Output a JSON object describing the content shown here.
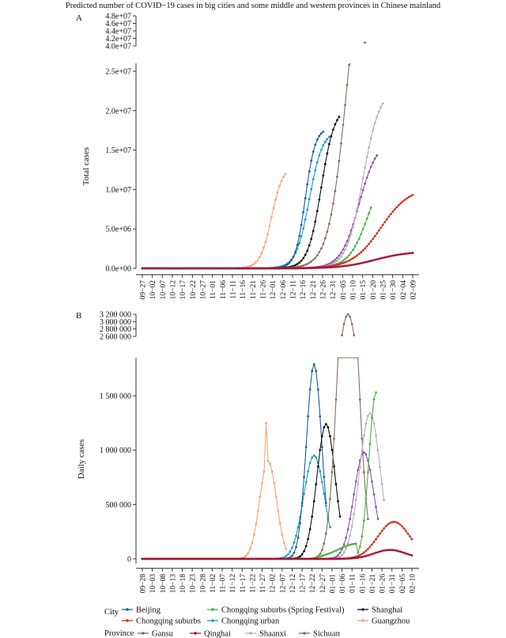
{
  "chart_data": {
    "type": "line",
    "title": "Predicted number of COVID−19 cases in big cities and some middle and western provinces in Chinese mainland",
    "legend": {
      "placement": "bottom",
      "city_title": "City",
      "province_title": "Province"
    },
    "series": [
      {
        "name": "Beijing",
        "group": "City",
        "color": "#1f5c99"
      },
      {
        "name": "Chongqing suburbs",
        "group": "City",
        "color": "#d7301f"
      },
      {
        "name": "Chongqing suburbs (Spring Festival)",
        "group": "City",
        "color": "#4daf4a"
      },
      {
        "name": "Chongqing urban",
        "group": "City",
        "color": "#1b9ec9"
      },
      {
        "name": "Shanghai",
        "group": "City",
        "color": "#111111"
      },
      {
        "name": "Guangzhou",
        "group": "City",
        "color": "#f4a582"
      },
      {
        "name": "Gansu",
        "group": "Province",
        "color": "#8e55a5"
      },
      {
        "name": "Qinghai",
        "group": "Province",
        "color": "#a50f32"
      },
      {
        "name": "Shaanxi",
        "group": "Province",
        "color": "#b3b3b3"
      },
      {
        "name": "Sichuan",
        "group": "Province",
        "color": "#8c6d5a"
      }
    ],
    "panels": [
      {
        "letter": "A",
        "ylabel": "Total cases",
        "xlabel": "",
        "x_ticks": [
          "09−27",
          "10−02",
          "10−07",
          "10−12",
          "10−17",
          "10−22",
          "10−27",
          "11−01",
          "11−06",
          "11−11",
          "11−16",
          "11−21",
          "11−26",
          "12−01",
          "12−06",
          "12−11",
          "12−16",
          "12−21",
          "12−26",
          "12−31",
          "01−05",
          "01−10",
          "01−15",
          "01−20",
          "01−25",
          "01−30",
          "02−04",
          "02−09"
        ],
        "y_main_ticks": [
          "0.0e+00",
          "5.0e+06",
          "1.0e+07",
          "1.5e+07",
          "2.0e+07",
          "2.5e+07"
        ],
        "y_main_values": [
          0,
          5000000,
          10000000,
          15000000,
          20000000,
          25000000
        ],
        "y_upper_ticks": [
          "4.0e+07",
          "4.2e+07",
          "4.4e+07",
          "4.6e+07",
          "4.8e+07"
        ],
        "y_upper_values": [
          40000000,
          42000000,
          44000000,
          46000000,
          48000000
        ],
        "ylim_main": [
          0,
          26000000
        ],
        "ylim_upper": [
          40000000,
          48000000
        ]
      },
      {
        "letter": "B",
        "ylabel": "Daily cases",
        "xlabel": "",
        "x_ticks": [
          "09−28",
          "10−03",
          "10−08",
          "10−13",
          "10−18",
          "10−23",
          "10−28",
          "11−02",
          "11−07",
          "11−12",
          "11−17",
          "11−22",
          "11−27",
          "12−02",
          "12−07",
          "12−12",
          "12−17",
          "12−22",
          "12−27",
          "01−01",
          "01−06",
          "01−11",
          "01−16",
          "01−21",
          "01−26",
          "01−31",
          "02−05",
          "02−10"
        ],
        "y_main_ticks": [
          "0",
          "500 000",
          "1 000 000",
          "1 500 000"
        ],
        "y_main_values": [
          0,
          500000,
          1000000,
          1500000
        ],
        "y_upper_ticks": [
          "2 600 000",
          "2 800 000",
          "3 000 000",
          "3 200 000"
        ],
        "y_upper_values": [
          2600000,
          2800000,
          3000000,
          3200000
        ],
        "ylim_main": [
          0,
          1850000
        ],
        "ylim_upper": [
          2600000,
          3200000
        ]
      }
    ]
  }
}
